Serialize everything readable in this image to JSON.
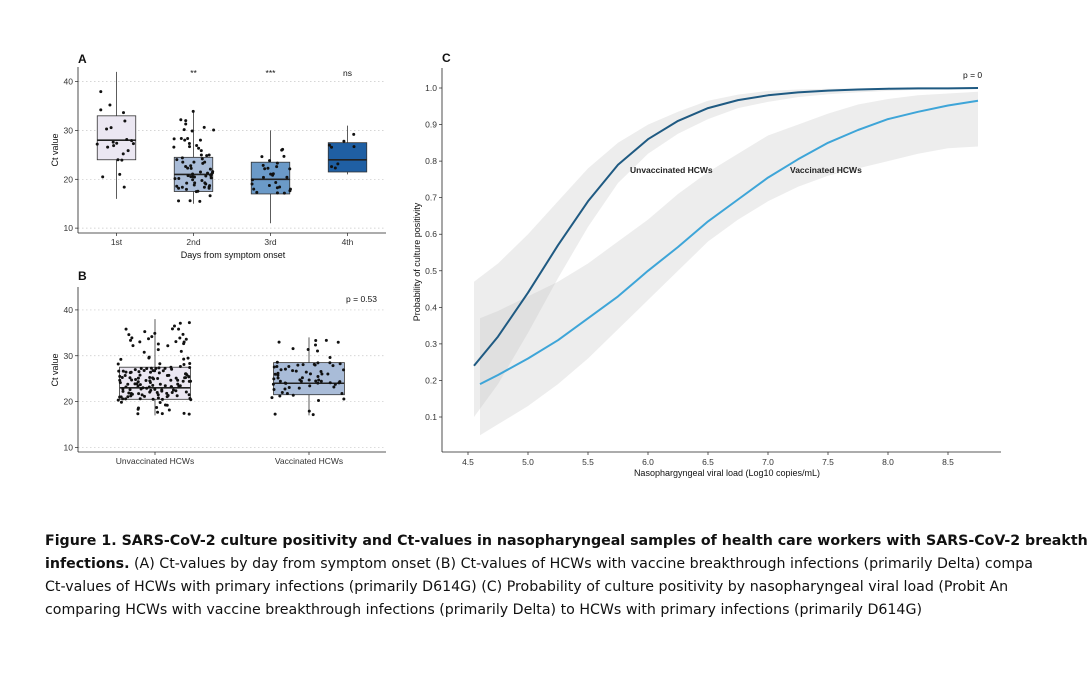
{
  "chart_data": [
    {
      "panel": "A",
      "type": "box",
      "xlabel": "Days from symptom onset",
      "ylabel": "Ct value",
      "ylim": [
        9,
        43
      ],
      "yticks": [
        10,
        20,
        30,
        40
      ],
      "grid": "horizontal dotted",
      "categories": [
        "1st",
        "2nd",
        "3rd",
        "4th"
      ],
      "colors": [
        "#ebe7f2",
        "#a9bcd8",
        "#6b9ac8",
        "#1f5fa3"
      ],
      "boxes": [
        {
          "q1": 24,
          "median": 28,
          "q3": 33,
          "whisker_low": 16,
          "whisker_high": 42
        },
        {
          "q1": 17.5,
          "median": 21,
          "q3": 24.5,
          "whisker_low": 15,
          "whisker_high": 34
        },
        {
          "q1": 17,
          "median": 20,
          "q3": 23.5,
          "whisker_low": 11,
          "whisker_high": 30
        },
        {
          "q1": 21.5,
          "median": 24,
          "q3": 27.5,
          "whisker_low": 21,
          "whisker_high": 31
        }
      ],
      "point_counts": [
        22,
        70,
        28,
        8
      ],
      "annotations": [
        "",
        "**",
        "***",
        "ns"
      ]
    },
    {
      "panel": "B",
      "type": "box",
      "xlabel": "",
      "ylabel": "Ct value",
      "ylim": [
        9,
        45
      ],
      "yticks": [
        10,
        20,
        30,
        40
      ],
      "grid": "horizontal dotted",
      "categories": [
        "Unvaccinated HCWs",
        "Vaccinated HCWs"
      ],
      "colors": [
        "#ebe7f2",
        "#a9bcd8"
      ],
      "boxes": [
        {
          "q1": 20.5,
          "median": 23,
          "q3": 27.5,
          "whisker_low": 17,
          "whisker_high": 38
        },
        {
          "q1": 21.5,
          "median": 24,
          "q3": 28.5,
          "whisker_low": 17,
          "whisker_high": 34
        }
      ],
      "point_counts": [
        160,
        70
      ],
      "annotation": "p = 0.53"
    },
    {
      "panel": "C",
      "type": "line",
      "xlabel": "Nasophargyngeal viral load (Log10 copies/mL)",
      "ylabel": "Probability of culture positivity",
      "xlim": [
        4.35,
        8.75
      ],
      "ylim": [
        0.02,
        1.02
      ],
      "xticks": [
        4.5,
        5.0,
        5.5,
        6.0,
        6.5,
        7.0,
        7.5,
        8.0,
        8.5
      ],
      "yticks": [
        0.1,
        0.2,
        0.3,
        0.4,
        0.5,
        0.6,
        0.7,
        0.8,
        0.9,
        1.0
      ],
      "annotation": "p = 0",
      "series": [
        {
          "name": "Unvaccinated HCWs",
          "color": "#1f5a82",
          "x": [
            4.55,
            4.75,
            5.0,
            5.25,
            5.5,
            5.75,
            6.0,
            6.25,
            6.5,
            6.75,
            7.0,
            7.25,
            7.5,
            7.75,
            8.0,
            8.25,
            8.5,
            8.75
          ],
          "y": [
            0.24,
            0.32,
            0.44,
            0.57,
            0.69,
            0.79,
            0.86,
            0.91,
            0.945,
            0.967,
            0.98,
            0.988,
            0.993,
            0.996,
            0.998,
            0.999,
            0.999,
            1.0
          ],
          "ci_low": [
            0.1,
            0.19,
            0.33,
            0.48,
            0.62,
            0.74,
            0.82,
            0.875,
            0.915,
            0.945,
            0.962,
            0.975,
            0.983,
            0.988,
            0.992,
            0.995,
            0.997,
            0.998
          ],
          "ci_high": [
            0.47,
            0.52,
            0.6,
            0.69,
            0.78,
            0.85,
            0.9,
            0.935,
            0.965,
            0.982,
            0.992,
            0.996,
            0.998,
            0.999,
            1.0,
            1.0,
            1.0,
            1.0
          ]
        },
        {
          "name": "Vaccinated HCWs",
          "color": "#3ea5d8",
          "x": [
            4.6,
            4.75,
            5.0,
            5.25,
            5.5,
            5.75,
            6.0,
            6.25,
            6.5,
            6.75,
            7.0,
            7.25,
            7.5,
            7.75,
            8.0,
            8.25,
            8.5,
            8.75
          ],
          "y": [
            0.19,
            0.215,
            0.26,
            0.31,
            0.37,
            0.43,
            0.5,
            0.565,
            0.635,
            0.695,
            0.755,
            0.805,
            0.85,
            0.885,
            0.915,
            0.935,
            0.952,
            0.965
          ],
          "ci_low": [
            0.05,
            0.08,
            0.13,
            0.19,
            0.26,
            0.34,
            0.42,
            0.5,
            0.58,
            0.64,
            0.69,
            0.73,
            0.76,
            0.78,
            0.8,
            0.82,
            0.835,
            0.84
          ],
          "ci_high": [
            0.37,
            0.39,
            0.43,
            0.47,
            0.52,
            0.58,
            0.64,
            0.71,
            0.77,
            0.82,
            0.87,
            0.9,
            0.93,
            0.955,
            0.97,
            0.98,
            0.985,
            0.99
          ]
        }
      ]
    }
  ],
  "caption": {
    "line1_bold": "Figure 1. SARS-CoV-2 culture positivity and Ct-values in nasopharyngeal samples of health care workers with SARS-CoV-2 breakth",
    "line2_bold": "infections.",
    "line2_rest": " (A) Ct-values by day from symptom onset (B) Ct-values of HCWs with vaccine breakthrough infections (primarily Delta) compa",
    "line3": "Ct-values of HCWs with primary infections (primarily D614G) (C) Probability of culture positivity by nasopharyngeal viral load (Probit An",
    "line4": "comparing HCWs with vaccine breakthrough infections (primarily Delta) to HCWs with primary infections (primarily D614G)"
  }
}
